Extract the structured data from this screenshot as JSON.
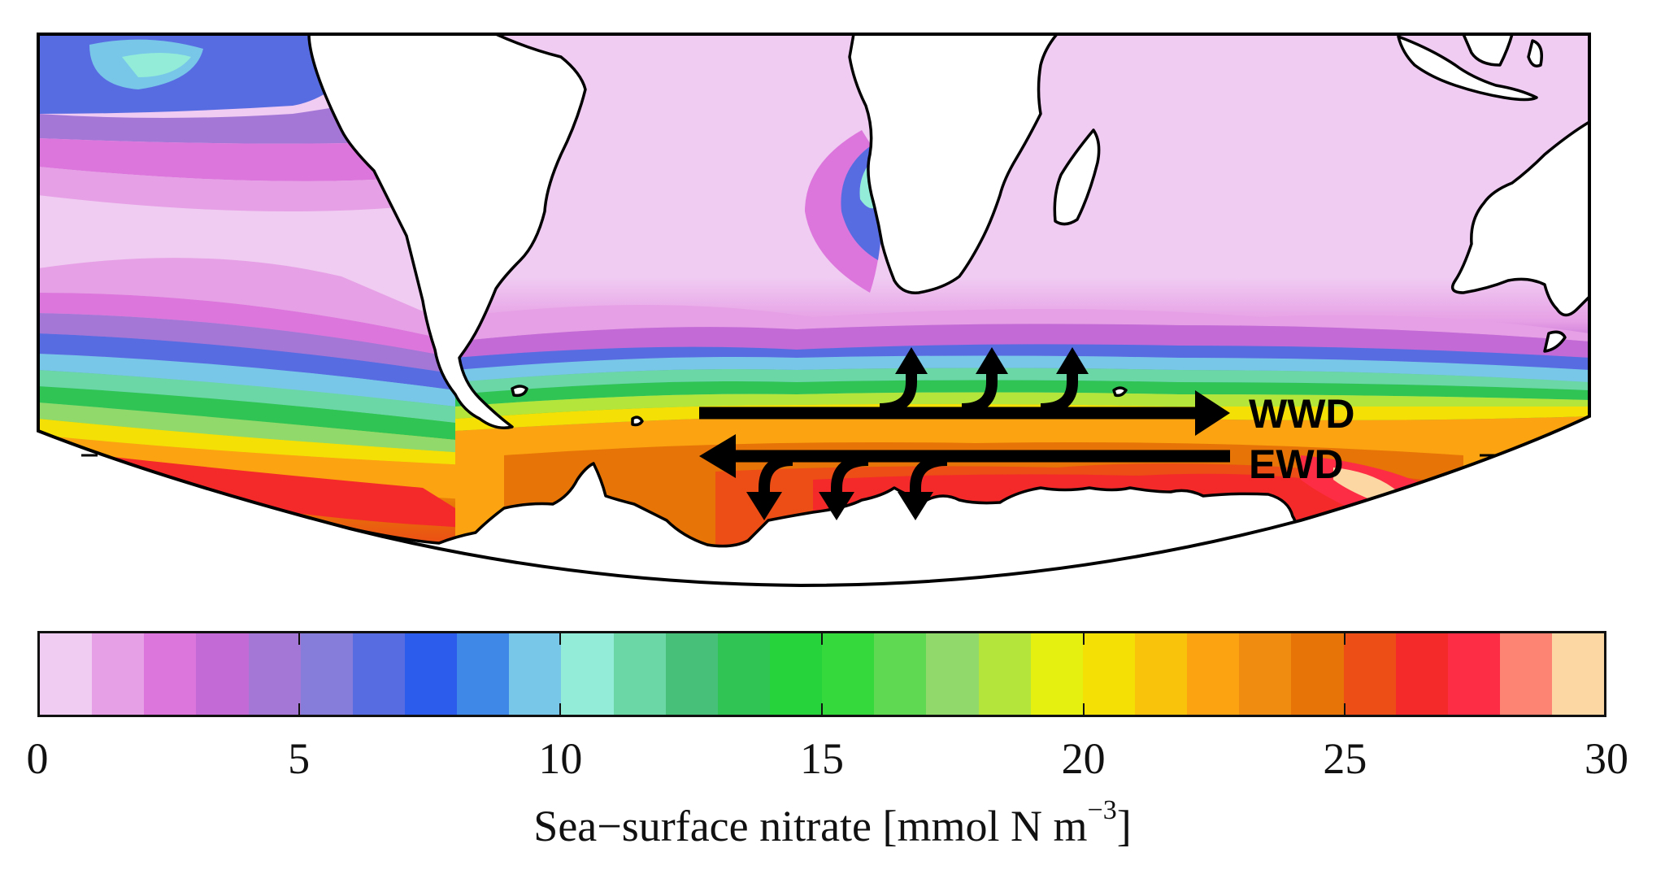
{
  "figure": {
    "type": "map",
    "projection_note": "Southern Hemisphere regional map, curved southern boundary",
    "regions_shown": [
      "South Pacific (eastern)",
      "South America",
      "South Atlantic",
      "Africa (southern)",
      "Madagascar",
      "Indian Ocean",
      "Australia (western)",
      "Antarctic Peninsula / Antarctica"
    ],
    "annotations": {
      "wwd_label": "WWD",
      "ewd_label": "EWD",
      "wwd_arrow_direction": "east (right)",
      "ewd_arrow_direction": "west (left)",
      "wwd_branches": 3,
      "ewd_branches": 3
    }
  },
  "colorbar": {
    "title_main": "Sea−surface nitrate [mmol N m",
    "title_sup": "−3",
    "title_end": "]",
    "min": 0,
    "max": 30,
    "ticks": [
      "0",
      "5",
      "10",
      "15",
      "20",
      "25",
      "30"
    ],
    "colors": [
      "#f0cbf2",
      "#e6a0e5",
      "#dc76dc",
      "#c36ad6",
      "#a477d7",
      "#867cd9",
      "#586ce2",
      "#2b5cec",
      "#4088e8",
      "#78c7e8",
      "#92ecd8",
      "#6bd6a6",
      "#47c07a",
      "#30c455",
      "#26d33a",
      "#35d93c",
      "#5fd952",
      "#90d96a",
      "#b3e53a",
      "#e5f010",
      "#f4e005",
      "#f9c20b",
      "#fba310",
      "#f08c0f",
      "#e67407",
      "#ec4e15",
      "#f42a2a",
      "#fd2d45",
      "#fd8373",
      "#fdd7a3"
    ]
  },
  "chart_data": {
    "type": "heatmap",
    "title": "",
    "colorbar_label": "Sea-surface nitrate [mmol N m^-3]",
    "value_range": [
      0,
      30
    ],
    "levels": 30,
    "tick_labels": [
      0,
      5,
      10,
      15,
      20,
      25,
      30
    ],
    "description_of_field": {
      "subtropical_gyres": "0-2 mmol N m^-3 (light pink)",
      "benguela_upwelling": "5-10 (blue) off SW Africa coast",
      "peru_upwelling_northwest": "5-10 (blue/cyan) top-left corner",
      "subantarctic_front_band": "5-15 (blue to green) band around ~40-45S",
      "southern_ocean_south_of_front": "20-29 (orange to red) high nitrate belt",
      "annotated_arrows": [
        "WWD (eastward, with 3 northward branches)",
        "EWD (westward, with 3 southward branches)"
      ]
    }
  }
}
